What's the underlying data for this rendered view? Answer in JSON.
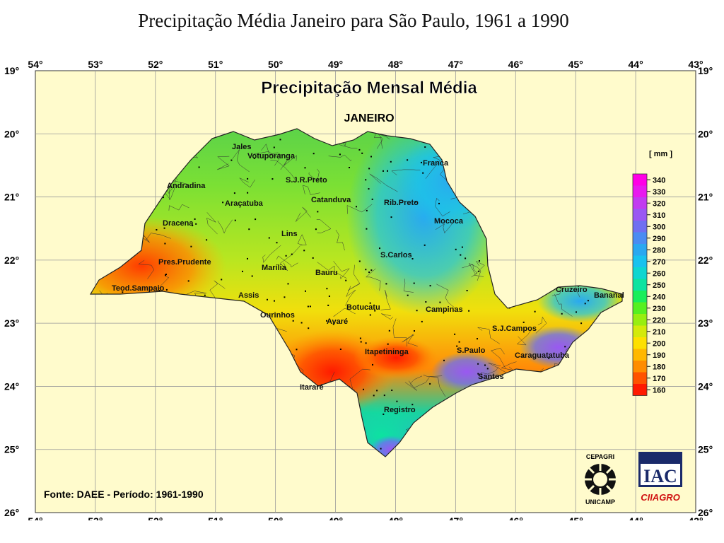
{
  "slide": {
    "title": "Precipitação Média Janeiro para São Paulo, 1961 a 1990"
  },
  "map": {
    "title": "Precipitação Mensal Média",
    "subtitle": "JANEIRO",
    "source": "Fonte: DAEE - Período: 1961-1990",
    "background_color": "#fffbcc",
    "longitude_labels": [
      "54°",
      "53°",
      "52°",
      "51°",
      "50°",
      "49°",
      "48°",
      "47°",
      "46°",
      "45°",
      "44°",
      "43°"
    ],
    "latitude_labels": [
      "19°",
      "20°",
      "21°",
      "22°",
      "23°",
      "24°",
      "25°",
      "26°"
    ],
    "cities": [
      "Jales",
      "Votuporanga",
      "Franca",
      "S.J.R.Preto",
      "Andradina",
      "Araçatuba",
      "Catanduva",
      "Rib.Preto",
      "Dracena",
      "Mococa",
      "Lins",
      "S.Carlos",
      "Pres.Prudente",
      "Marília",
      "Bauru",
      "Teod.Sampaio",
      "Assis",
      "Cruzeiro",
      "Bananal",
      "Botucatu",
      "Ourinhos",
      "Campinas",
      "Avaré",
      "S.J.Campos",
      "Itapetininga",
      "S.Paulo",
      "Caraguatatuba",
      "Santos",
      "Itararé",
      "Registro"
    ]
  },
  "legend": {
    "unit": "[ mm ]",
    "values": [
      "340",
      "330",
      "320",
      "310",
      "300",
      "290",
      "280",
      "270",
      "260",
      "250",
      "240",
      "230",
      "220",
      "210",
      "200",
      "190",
      "180",
      "170",
      "160"
    ],
    "colors": [
      "#ff00e6",
      "#e81aee",
      "#c23bf0",
      "#9a58f2",
      "#6f6ff0",
      "#4a8cf2",
      "#2aa8f0",
      "#19c2ee",
      "#0fd6d0",
      "#0ce3a0",
      "#1aee5a",
      "#56f020",
      "#98ee10",
      "#d3ea0a",
      "#fde000",
      "#ffb800",
      "#ff8c00",
      "#ff5200",
      "#ff1a00"
    ]
  },
  "logos": {
    "cepagri_top": "CEPAGRI",
    "cepagri_bottom": "UNICAMP",
    "iac": "IAC",
    "ciiagro": "CIIAGRO"
  }
}
